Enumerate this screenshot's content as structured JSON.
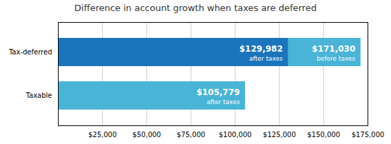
{
  "chart_data": {
    "type": "bar",
    "orientation": "horizontal",
    "stacked": false,
    "title": "Difference in account growth when taxes are deferred",
    "categories": [
      "Taxable",
      "Tax-deferred"
    ],
    "series": [
      {
        "name": "before taxes",
        "color": "#49b4d6",
        "values": [
          null,
          171030
        ],
        "value_labels": [
          null,
          "$171,030"
        ]
      },
      {
        "name": "after taxes",
        "colors": [
          "#49b4d6",
          "#1b75bc"
        ],
        "values": [
          105779,
          129982
        ],
        "value_labels": [
          "$105,779",
          "$129,982"
        ]
      }
    ],
    "data_labels": true,
    "xlim": [
      0,
      175000
    ],
    "xticks": [
      {
        "value": 25000,
        "label": "$25,000"
      },
      {
        "value": 50000,
        "label": "$50,000"
      },
      {
        "value": 75000,
        "label": "$75,000"
      },
      {
        "value": 100000,
        "label": "$100,000"
      },
      {
        "value": 125000,
        "label": "$125,000"
      },
      {
        "value": 150000,
        "label": "$150,000"
      },
      {
        "value": 175000,
        "label": "$175,000"
      }
    ],
    "grid": true
  }
}
